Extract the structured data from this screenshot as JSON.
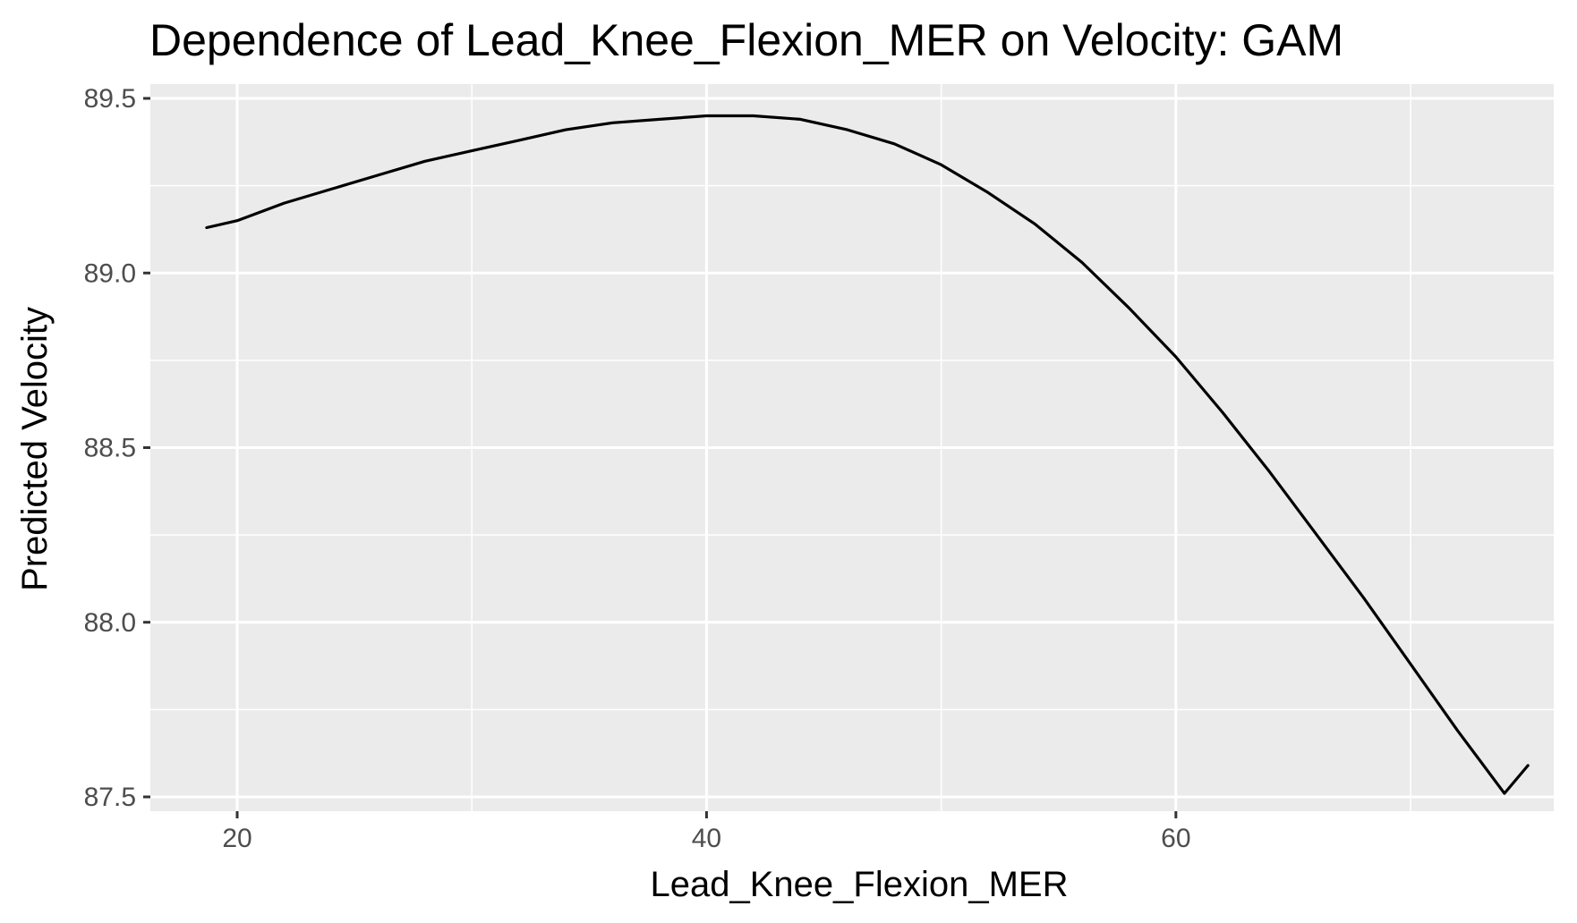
{
  "chart_data": {
    "type": "line",
    "title": "Dependence of Lead_Knee_Flexion_MER on Velocity: GAM",
    "xlabel": "Lead_Knee_Flexion_MER",
    "ylabel": "Predicted Velocity",
    "xlim": [
      16.3,
      76.1
    ],
    "ylim": [
      87.5,
      89.5
    ],
    "x_ticks": [
      20,
      40,
      60
    ],
    "y_ticks": [
      87.5,
      88.0,
      88.5,
      89.0,
      89.5
    ],
    "x_tick_labels": [
      "20",
      "40",
      "60"
    ],
    "y_tick_labels": [
      "87.5",
      "88.0",
      "88.5",
      "89.0",
      "89.5"
    ],
    "grid": true,
    "legend": "none",
    "series": [
      {
        "color": "#000000",
        "x": [
          18.7,
          20.0,
          22.0,
          24.0,
          26.0,
          28.0,
          30.0,
          32.0,
          34.0,
          36.0,
          38.0,
          40.0,
          42.0,
          44.0,
          46.0,
          48.0,
          50.0,
          52.0,
          54.0,
          56.0,
          58.0,
          60.0,
          62.0,
          64.0,
          66.0,
          68.0,
          70.0,
          72.0,
          74.0,
          75.0
        ],
        "y": [
          89.13,
          89.15,
          89.2,
          89.24,
          89.28,
          89.32,
          89.35,
          89.38,
          89.41,
          89.43,
          89.44,
          89.45,
          89.45,
          89.44,
          89.41,
          89.37,
          89.31,
          89.23,
          89.14,
          89.03,
          88.9,
          88.76,
          88.6,
          88.43,
          88.25,
          88.07,
          87.88,
          87.69,
          87.51,
          87.59
        ]
      }
    ],
    "colors": {
      "panel_background": "#ebebeb",
      "grid_major": "#ffffff",
      "grid_minor": "#ffffff",
      "line": "#000000",
      "tick_text": "#4d4d4d",
      "tick_mark": "#333333"
    }
  }
}
